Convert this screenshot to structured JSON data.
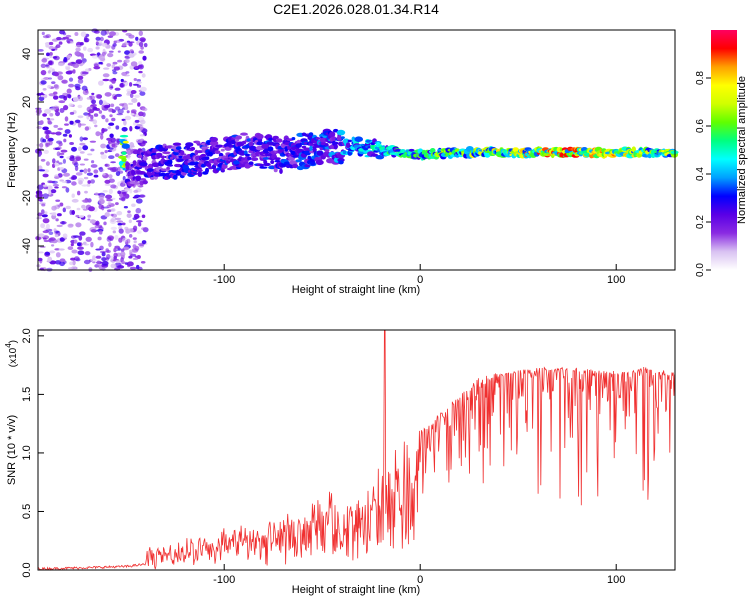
{
  "chart_data": [
    {
      "type": "heatmap",
      "title": "C2E1.2026.028.01.34.R14",
      "xlabel": "Height of straight line (km)",
      "ylabel": "Frequency (Hz)",
      "xlim": [
        -195,
        130
      ],
      "ylim": [
        -50,
        50
      ],
      "xticks": [
        -100,
        0,
        100
      ],
      "yticks": [
        -40,
        -20,
        0,
        20,
        40
      ],
      "colorbar": {
        "label": "Normalized spectral amplitude",
        "range": [
          0,
          1
        ],
        "ticks": [
          0.0,
          0.2,
          0.4,
          0.6,
          0.8
        ],
        "tick_labels": [
          "0.0",
          "0.2",
          "0.4",
          "0.6",
          "0.8"
        ],
        "colors": [
          "#ffffff",
          "#d9c2f2",
          "#8a2be2",
          "#5a00e6",
          "#0000ff",
          "#00a0ff",
          "#00ffff",
          "#00ff80",
          "#60ff00",
          "#d0ff00",
          "#ffff00",
          "#ffa000",
          "#ff0000",
          "#ff0060"
        ]
      },
      "ridge": [
        {
          "x": -150,
          "f": -8,
          "amp": 0.25
        },
        {
          "x": -130,
          "f": -5,
          "amp": 0.3
        },
        {
          "x": -110,
          "f": -3,
          "amp": 0.3
        },
        {
          "x": -90,
          "f": 0,
          "amp": 0.32
        },
        {
          "x": -70,
          "f": -2,
          "amp": 0.32
        },
        {
          "x": -50,
          "f": 1,
          "amp": 0.35
        },
        {
          "x": -35,
          "f": 2,
          "amp": 0.45
        },
        {
          "x": -20,
          "f": 0,
          "amp": 0.5
        },
        {
          "x": 0,
          "f": -2,
          "amp": 0.6
        },
        {
          "x": 20,
          "f": -1,
          "amp": 0.65
        },
        {
          "x": 40,
          "f": -1,
          "amp": 0.75
        },
        {
          "x": 60,
          "f": -1,
          "amp": 0.85
        },
        {
          "x": 80,
          "f": -1,
          "amp": 0.9
        },
        {
          "x": 100,
          "f": -1,
          "amp": 0.8
        },
        {
          "x": 120,
          "f": -1,
          "amp": 0.7
        },
        {
          "x": 130,
          "f": -1,
          "amp": 0.7
        }
      ]
    },
    {
      "type": "line",
      "xlabel": "Height of straight line (km)",
      "ylabel": "SNR (10 * v/v)",
      "exponent_label": "(x10",
      "exponent_power": "4",
      "exponent_close": ")",
      "xlim": [
        -195,
        130
      ],
      "ylim": [
        0,
        2.05
      ],
      "xticks": [
        -100,
        0,
        100
      ],
      "yticks": [
        0.0,
        0.5,
        1.0,
        1.5,
        2.0
      ],
      "ytick_labels": [
        "0.0",
        "0.5",
        "1.0",
        "1.5",
        "2.0"
      ],
      "series": [
        {
          "name": "SNR",
          "color": "#f03030",
          "x": [
            -195,
            -170,
            -150,
            -140,
            -130,
            -120,
            -110,
            -100,
            -90,
            -80,
            -70,
            -60,
            -50,
            -45,
            -40,
            -35,
            -30,
            -25,
            -22,
            -18,
            -15,
            -10,
            -5,
            0,
            5,
            10,
            20,
            30,
            40,
            50,
            60,
            70,
            80,
            90,
            100,
            110,
            115,
            120,
            130
          ],
          "y": [
            0.0,
            0.01,
            0.02,
            0.04,
            0.1,
            0.15,
            0.2,
            0.22,
            0.28,
            0.3,
            0.35,
            0.42,
            0.55,
            0.55,
            0.5,
            0.5,
            0.55,
            0.62,
            0.8,
            0.95,
            0.95,
            1.05,
            1.1,
            1.15,
            1.2,
            1.3,
            1.45,
            1.6,
            1.65,
            1.68,
            1.7,
            1.7,
            1.7,
            1.68,
            1.67,
            1.68,
            1.72,
            1.68,
            1.67
          ]
        }
      ]
    }
  ]
}
